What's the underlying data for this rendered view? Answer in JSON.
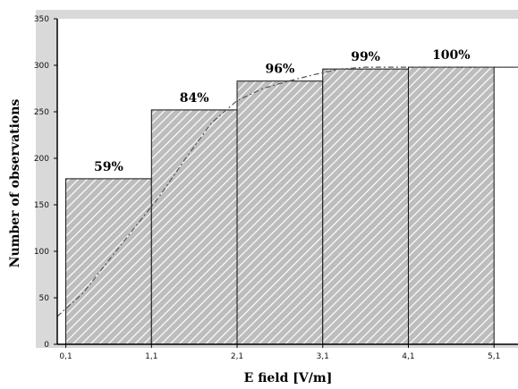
{
  "chart_data": {
    "type": "bar",
    "title": "",
    "xlabel": "E field [V/m]",
    "ylabel": "Number of observations",
    "x_ticks": [
      "0,1",
      "1,1",
      "2,1",
      "3,1",
      "4,1",
      "5,1"
    ],
    "bins": [
      {
        "start": 0.1,
        "end": 1.1,
        "value": 178,
        "label": "59%"
      },
      {
        "start": 1.1,
        "end": 2.1,
        "value": 252,
        "label": "84%"
      },
      {
        "start": 2.1,
        "end": 3.1,
        "value": 283,
        "label": "96%"
      },
      {
        "start": 3.1,
        "end": 4.1,
        "value": 296,
        "label": "99%"
      },
      {
        "start": 4.1,
        "end": 5.1,
        "value": 298,
        "label": "100%"
      }
    ],
    "cumulative_curve": [
      [
        0.0,
        30
      ],
      [
        0.3,
        55
      ],
      [
        0.6,
        90
      ],
      [
        0.9,
        125
      ],
      [
        1.2,
        160
      ],
      [
        1.5,
        200
      ],
      [
        1.8,
        238
      ],
      [
        2.1,
        262
      ],
      [
        2.4,
        275
      ],
      [
        2.7,
        283
      ],
      [
        3.0,
        290
      ],
      [
        3.3,
        296
      ],
      [
        3.6,
        298
      ],
      [
        4.1,
        298
      ],
      [
        5.1,
        298
      ],
      [
        5.38,
        298
      ]
    ],
    "xlim": [
      0.0,
      5.38
    ],
    "ylim": [
      0,
      350
    ],
    "y_ticks": [
      0,
      50,
      100,
      150,
      200,
      250,
      300,
      350
    ],
    "grid": false,
    "colors": {
      "bar_fill": "#bdbdbd",
      "hatch": "#ffffff",
      "bar_edge": "#111111",
      "curve": "#555555",
      "plot_bg": "#ffffff",
      "outer_bg": "#d9d9d9"
    }
  }
}
